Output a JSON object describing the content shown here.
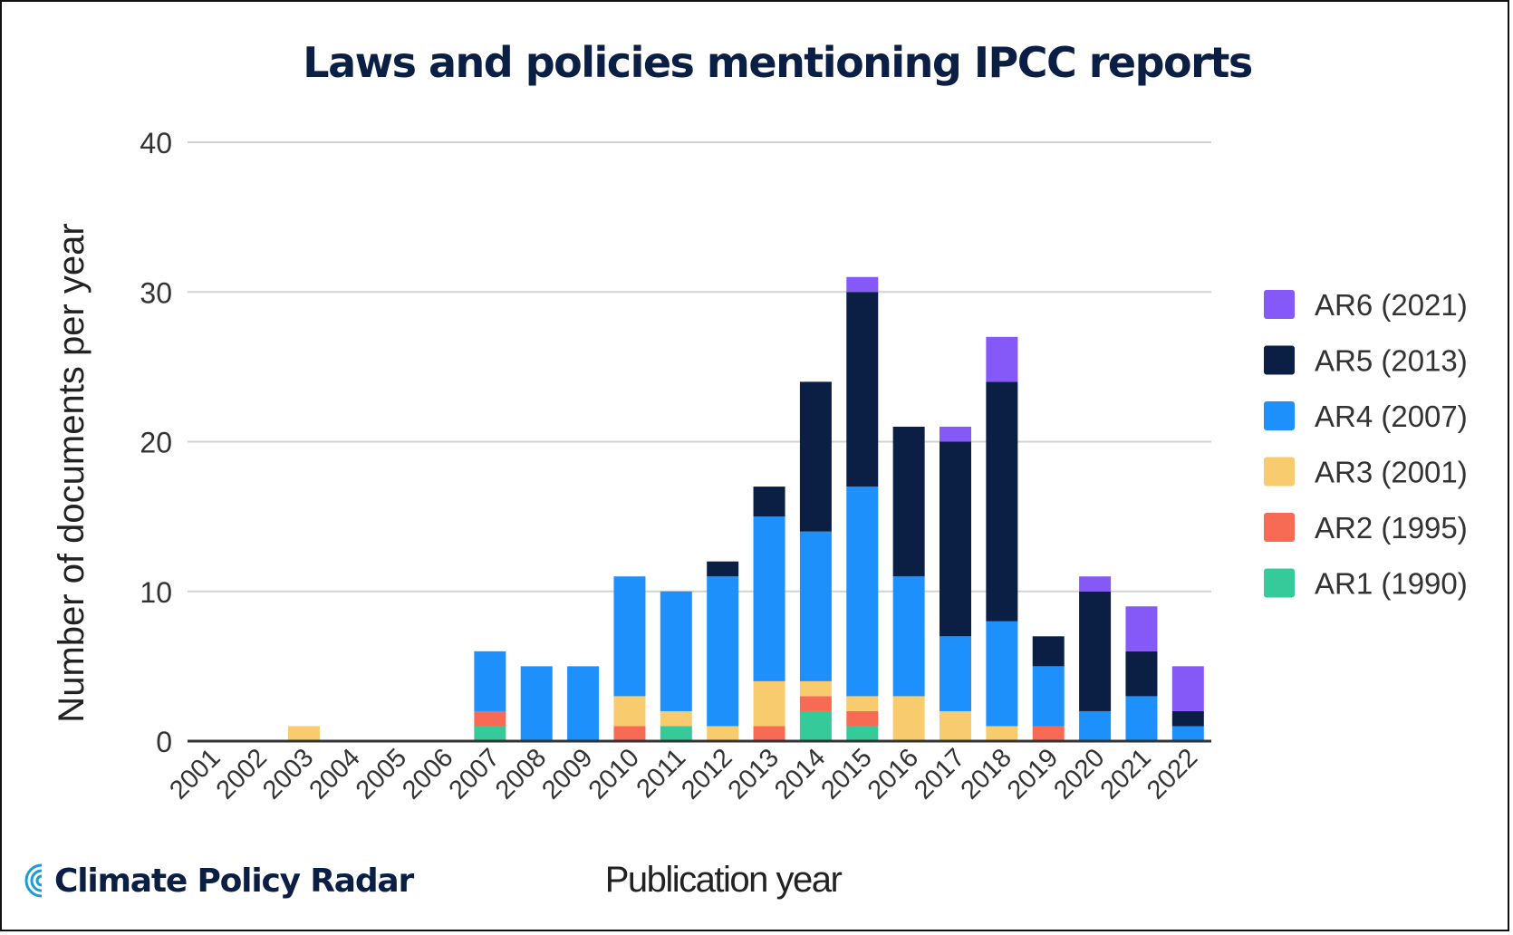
{
  "brand": {
    "name": "Climate Policy Radar",
    "logo_icon": "radar-arcs-icon",
    "logo_color": "#1e9bd7"
  },
  "chart_data": {
    "type": "bar",
    "stacked": true,
    "title": "Laws and policies mentioning IPCC reports",
    "xlabel": "Publication year",
    "ylabel": "Number of documents per year",
    "ylim": [
      0,
      40
    ],
    "yticks": [
      0,
      10,
      20,
      30,
      40
    ],
    "grid": true,
    "legend_position": "right",
    "categories": [
      "2001",
      "2002",
      "2003",
      "2004",
      "2005",
      "2006",
      "2007",
      "2008",
      "2009",
      "2010",
      "2011",
      "2012",
      "2013",
      "2014",
      "2015",
      "2016",
      "2017",
      "2018",
      "2019",
      "2020",
      "2021",
      "2022"
    ],
    "series": [
      {
        "name": "AR1 (1990)",
        "color": "#36c99a",
        "values": [
          0,
          0,
          0,
          0,
          0,
          0,
          1,
          0,
          0,
          0,
          1,
          0,
          0,
          2,
          1,
          0,
          0,
          0,
          0,
          0,
          0,
          0
        ]
      },
      {
        "name": "AR2 (1995)",
        "color": "#f76b55",
        "values": [
          0,
          0,
          0,
          0,
          0,
          0,
          1,
          0,
          0,
          1,
          0,
          0,
          1,
          1,
          1,
          0,
          0,
          0,
          1,
          0,
          0,
          0
        ]
      },
      {
        "name": "AR3 (2001)",
        "color": "#f8cc6e",
        "values": [
          0,
          0,
          1,
          0,
          0,
          0,
          0,
          0,
          0,
          2,
          1,
          1,
          3,
          1,
          1,
          3,
          2,
          1,
          0,
          0,
          0,
          0
        ]
      },
      {
        "name": "AR4 (2007)",
        "color": "#1e90fb",
        "values": [
          0,
          0,
          0,
          0,
          0,
          0,
          4,
          5,
          5,
          8,
          8,
          10,
          11,
          10,
          14,
          8,
          5,
          7,
          4,
          2,
          3,
          1
        ]
      },
      {
        "name": "AR5 (2013)",
        "color": "#0b1f44",
        "values": [
          0,
          0,
          0,
          0,
          0,
          0,
          0,
          0,
          0,
          0,
          0,
          1,
          2,
          10,
          13,
          10,
          13,
          16,
          2,
          8,
          3,
          1
        ]
      },
      {
        "name": "AR6 (2021)",
        "color": "#8558f8",
        "values": [
          0,
          0,
          0,
          0,
          0,
          0,
          0,
          0,
          0,
          0,
          0,
          0,
          0,
          0,
          1,
          0,
          1,
          3,
          0,
          1,
          3,
          3
        ]
      }
    ]
  }
}
